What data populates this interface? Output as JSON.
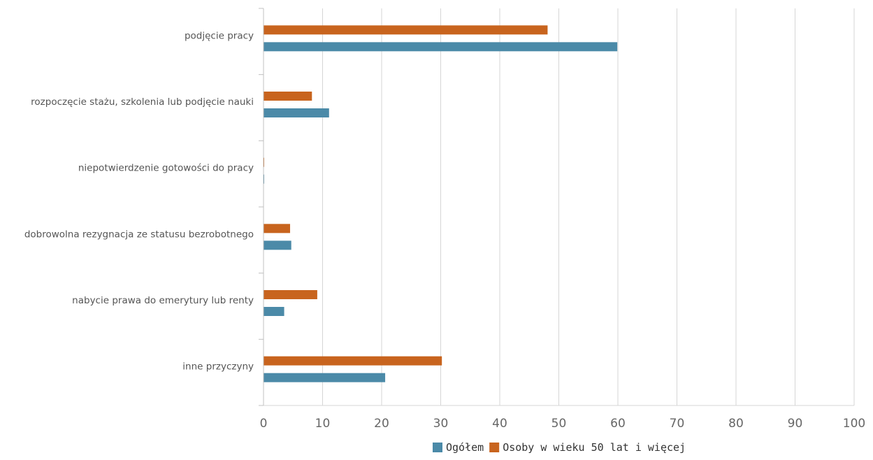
{
  "chart_data": {
    "type": "bar",
    "orientation": "horizontal",
    "categories": [
      "podjęcie pracy",
      "rozpoczęcie stażu, szkolenia lub podjęcie nauki",
      "niepotwierdzenie gotowości do pracy",
      "dobrowolna rezygnacja ze statusu bezrobotnego",
      "nabycie prawa do emerytury lub renty",
      "inne przyczyny"
    ],
    "series": [
      {
        "name": "Osoby w wieku 50 lat i więcej",
        "color": "#c8641e",
        "values": [
          48.1,
          8.2,
          0,
          4.5,
          9.1,
          30.2
        ]
      },
      {
        "name": "Ogółem",
        "color": "#4b8aa8",
        "values": [
          59.9,
          11.1,
          0.1,
          4.7,
          3.5,
          20.6
        ]
      }
    ],
    "xlim": [
      0,
      100
    ],
    "xticks": [
      "0",
      "10",
      "20",
      "30",
      "40",
      "50",
      "60",
      "70",
      "80",
      "90",
      "100"
    ],
    "grid": true,
    "legend": {
      "position": "bottom",
      "items": [
        {
          "label": "Ogółem",
          "color": "#4b8aa8"
        },
        {
          "label": "Osoby w wieku 50 lat i więcej",
          "color": "#c8641e"
        }
      ]
    }
  }
}
